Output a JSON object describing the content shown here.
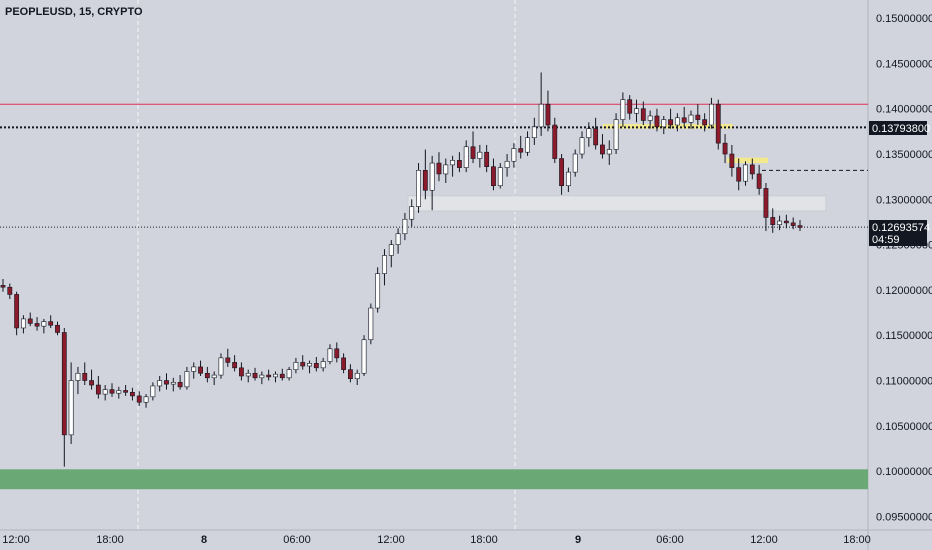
{
  "header": {
    "title": "PEOPLEUSD, 15, CRYPTO"
  },
  "price_tags": {
    "level": {
      "value": "0.13793800"
    },
    "last": {
      "value": "0.12693574",
      "countdown": "04:59"
    }
  },
  "colors": {
    "background": "#d1d4dc",
    "up_candle_body": "#ffffff",
    "down_candle_body": "#8b1a2b",
    "wick": "#131722",
    "resistance_line": "#e0305a",
    "support_zone": "#6aa875",
    "highlight_zone": "#f3e98c",
    "range_box": "#e3e5e8",
    "tag_background": "#131722"
  },
  "chart_data": {
    "type": "candlestick",
    "title": "PEOPLEUSD, 15, CRYPTO",
    "x_ticks": [
      "12:00",
      "18:00",
      "8",
      "06:00",
      "12:00",
      "18:00",
      "9",
      "06:00",
      "12:00",
      "18:00"
    ],
    "y_ticks": [
      "0.15000000",
      "0.14500000",
      "0.14000000",
      "0.13500000",
      "0.13000000",
      "0.12500000",
      "0.12000000",
      "0.11500000",
      "0.11000000",
      "0.10500000",
      "0.10000000",
      "0.09500000"
    ],
    "ylim": [
      0.0935,
      0.152
    ],
    "levels": {
      "resistance": 0.1405,
      "dotted_level": 0.137938,
      "last_price": 0.12693574,
      "dashed_level": 0.1332
    },
    "zones": {
      "support": [
        0.098,
        0.1002
      ],
      "range_box": [
        0.1287,
        0.1304
      ],
      "highlight_upper": [
        0.1378,
        0.1383
      ],
      "highlight_lower": [
        0.134,
        0.1346
      ]
    },
    "candles_ohlc": [
      [
        0.1205,
        0.1212,
        0.1198,
        0.1203
      ],
      [
        0.1203,
        0.1207,
        0.119,
        0.1195
      ],
      [
        0.1195,
        0.1198,
        0.115,
        0.1158
      ],
      [
        0.1158,
        0.1172,
        0.1152,
        0.1168
      ],
      [
        0.1168,
        0.1175,
        0.116,
        0.1163
      ],
      [
        0.1163,
        0.117,
        0.1155,
        0.116
      ],
      [
        0.116,
        0.1168,
        0.1152,
        0.1165
      ],
      [
        0.1165,
        0.1172,
        0.1158,
        0.1161
      ],
      [
        0.1161,
        0.1165,
        0.115,
        0.1153
      ],
      [
        0.1153,
        0.1158,
        0.1005,
        0.104
      ],
      [
        0.104,
        0.112,
        0.103,
        0.11
      ],
      [
        0.11,
        0.1115,
        0.1085,
        0.1108
      ],
      [
        0.1108,
        0.112,
        0.1095,
        0.11
      ],
      [
        0.11,
        0.1112,
        0.109,
        0.1095
      ],
      [
        0.1095,
        0.1105,
        0.108,
        0.1085
      ],
      [
        0.1085,
        0.1095,
        0.1078,
        0.109
      ],
      [
        0.109,
        0.1097,
        0.1082,
        0.1086
      ],
      [
        0.1086,
        0.1093,
        0.108,
        0.1089
      ],
      [
        0.1089,
        0.1095,
        0.1083,
        0.1087
      ],
      [
        0.1087,
        0.1092,
        0.1078,
        0.1083
      ],
      [
        0.1083,
        0.1088,
        0.1072,
        0.1076
      ],
      [
        0.1076,
        0.1085,
        0.107,
        0.1082
      ],
      [
        0.1082,
        0.1098,
        0.1078,
        0.1094
      ],
      [
        0.1094,
        0.1105,
        0.1088,
        0.11
      ],
      [
        0.11,
        0.1108,
        0.109,
        0.1096
      ],
      [
        0.1096,
        0.1103,
        0.1088,
        0.1098
      ],
      [
        0.1098,
        0.1106,
        0.109,
        0.1093
      ],
      [
        0.1093,
        0.1115,
        0.109,
        0.111
      ],
      [
        0.111,
        0.112,
        0.1102,
        0.1115
      ],
      [
        0.1115,
        0.1122,
        0.1105,
        0.1108
      ],
      [
        0.1108,
        0.1115,
        0.1098,
        0.1103
      ],
      [
        0.1103,
        0.111,
        0.1095,
        0.1106
      ],
      [
        0.1106,
        0.113,
        0.1102,
        0.1125
      ],
      [
        0.1125,
        0.1135,
        0.1115,
        0.112
      ],
      [
        0.112,
        0.1128,
        0.111,
        0.1114
      ],
      [
        0.1114,
        0.112,
        0.11,
        0.1105
      ],
      [
        0.1105,
        0.1112,
        0.1098,
        0.1108
      ],
      [
        0.1108,
        0.1114,
        0.11,
        0.1103
      ],
      [
        0.1103,
        0.111,
        0.1096,
        0.1106
      ],
      [
        0.1106,
        0.1112,
        0.11,
        0.1104
      ],
      [
        0.1104,
        0.111,
        0.1098,
        0.1107
      ],
      [
        0.1107,
        0.1113,
        0.11,
        0.1103
      ],
      [
        0.1103,
        0.1115,
        0.11,
        0.1112
      ],
      [
        0.1112,
        0.1125,
        0.1108,
        0.112
      ],
      [
        0.112,
        0.1128,
        0.1112,
        0.1116
      ],
      [
        0.1116,
        0.1122,
        0.1108,
        0.1119
      ],
      [
        0.1119,
        0.1126,
        0.111,
        0.1114
      ],
      [
        0.1114,
        0.1125,
        0.111,
        0.1121
      ],
      [
        0.1121,
        0.114,
        0.1118,
        0.1135
      ],
      [
        0.1135,
        0.1142,
        0.112,
        0.1125
      ],
      [
        0.1125,
        0.113,
        0.1108,
        0.1112
      ],
      [
        0.1112,
        0.1118,
        0.1098,
        0.1102
      ],
      [
        0.1102,
        0.1112,
        0.1095,
        0.1108
      ],
      [
        0.1108,
        0.115,
        0.1105,
        0.1145
      ],
      [
        0.1145,
        0.1185,
        0.114,
        0.118
      ],
      [
        0.118,
        0.1225,
        0.1175,
        0.1218
      ],
      [
        0.1218,
        0.1245,
        0.1205,
        0.1238
      ],
      [
        0.1238,
        0.1255,
        0.1225,
        0.125
      ],
      [
        0.125,
        0.1268,
        0.124,
        0.1262
      ],
      [
        0.1262,
        0.1285,
        0.1255,
        0.1278
      ],
      [
        0.1278,
        0.13,
        0.127,
        0.1292
      ],
      [
        0.1292,
        0.134,
        0.1285,
        0.1332
      ],
      [
        0.1332,
        0.1355,
        0.13,
        0.131
      ],
      [
        0.131,
        0.1348,
        0.1288,
        0.134
      ],
      [
        0.134,
        0.1352,
        0.132,
        0.1328
      ],
      [
        0.1328,
        0.1345,
        0.1318,
        0.1338
      ],
      [
        0.1338,
        0.1348,
        0.1325,
        0.1343
      ],
      [
        0.1343,
        0.1352,
        0.133,
        0.1335
      ],
      [
        0.1335,
        0.1365,
        0.133,
        0.1358
      ],
      [
        0.1358,
        0.1375,
        0.134,
        0.1345
      ],
      [
        0.1345,
        0.136,
        0.1335,
        0.1352
      ],
      [
        0.1352,
        0.136,
        0.133,
        0.1336
      ],
      [
        0.1336,
        0.1345,
        0.131,
        0.1315
      ],
      [
        0.1315,
        0.134,
        0.1312,
        0.1335
      ],
      [
        0.1335,
        0.135,
        0.1325,
        0.1342
      ],
      [
        0.1342,
        0.1362,
        0.1335,
        0.1356
      ],
      [
        0.1356,
        0.137,
        0.1345,
        0.1352
      ],
      [
        0.1352,
        0.1375,
        0.1348,
        0.1368
      ],
      [
        0.1368,
        0.139,
        0.136,
        0.138
      ],
      [
        0.138,
        0.144,
        0.137,
        0.1405
      ],
      [
        0.1405,
        0.142,
        0.1375,
        0.1382
      ],
      [
        0.1382,
        0.139,
        0.134,
        0.1345
      ],
      [
        0.1345,
        0.135,
        0.1305,
        0.1315
      ],
      [
        0.1315,
        0.1335,
        0.1308,
        0.133
      ],
      [
        0.133,
        0.1355,
        0.1325,
        0.135
      ],
      [
        0.135,
        0.1375,
        0.1345,
        0.1368
      ],
      [
        0.1368,
        0.1385,
        0.1358,
        0.1378
      ],
      [
        0.1378,
        0.139,
        0.1355,
        0.136
      ],
      [
        0.136,
        0.1372,
        0.1345,
        0.135
      ],
      [
        0.135,
        0.1365,
        0.1338,
        0.1355
      ],
      [
        0.1355,
        0.1395,
        0.135,
        0.1388
      ],
      [
        0.1388,
        0.1418,
        0.138,
        0.141
      ],
      [
        0.141,
        0.1415,
        0.1388,
        0.1395
      ],
      [
        0.1395,
        0.141,
        0.1385,
        0.14
      ],
      [
        0.14,
        0.1408,
        0.1382,
        0.1387
      ],
      [
        0.1387,
        0.1398,
        0.1378,
        0.1392
      ],
      [
        0.1392,
        0.14,
        0.1375,
        0.138
      ],
      [
        0.138,
        0.1392,
        0.1372,
        0.1388
      ],
      [
        0.1388,
        0.14,
        0.1378,
        0.1382
      ],
      [
        0.1382,
        0.1395,
        0.1375,
        0.139
      ],
      [
        0.139,
        0.1402,
        0.138,
        0.1385
      ],
      [
        0.1385,
        0.1398,
        0.1378,
        0.1393
      ],
      [
        0.1393,
        0.1405,
        0.1382,
        0.1388
      ],
      [
        0.1388,
        0.1395,
        0.1375,
        0.1382
      ],
      [
        0.1382,
        0.1412,
        0.1378,
        0.1405
      ],
      [
        0.1405,
        0.141,
        0.1355,
        0.1362
      ],
      [
        0.1362,
        0.1372,
        0.134,
        0.135
      ],
      [
        0.135,
        0.136,
        0.1325,
        0.1335
      ],
      [
        0.1335,
        0.1345,
        0.131,
        0.132
      ],
      [
        0.132,
        0.1342,
        0.1315,
        0.1338
      ],
      [
        0.1338,
        0.1345,
        0.1322,
        0.1328
      ],
      [
        0.1328,
        0.1338,
        0.1305,
        0.1312
      ],
      [
        0.1312,
        0.1318,
        0.1265,
        0.128
      ],
      [
        0.128,
        0.129,
        0.1263,
        0.1272
      ],
      [
        0.1272,
        0.1282,
        0.1266,
        0.1276
      ],
      [
        0.1276,
        0.1283,
        0.1268,
        0.1274
      ],
      [
        0.1274,
        0.128,
        0.1267,
        0.1271
      ],
      [
        0.1271,
        0.1277,
        0.1265,
        0.1269
      ]
    ]
  }
}
